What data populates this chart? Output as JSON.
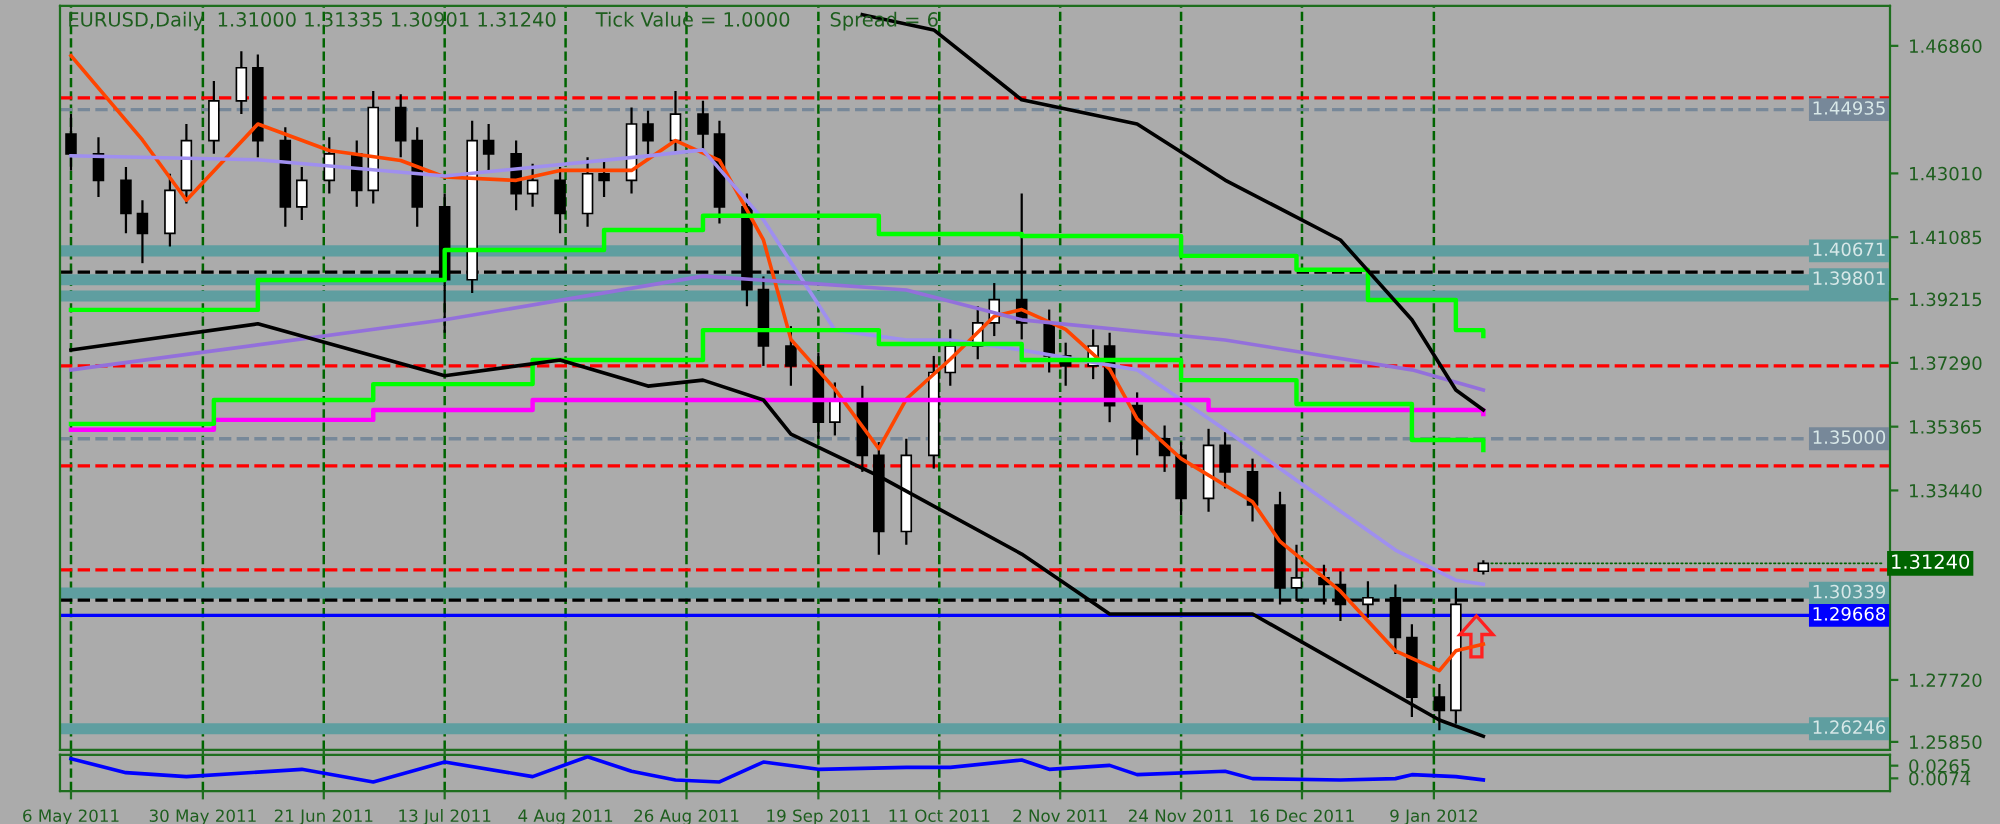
{
  "chart_data": [
    {
      "type": "candlestick",
      "x": [
        "2011-05-06",
        "2011-05-11",
        "2011-05-16",
        "2011-05-19",
        "2011-05-24",
        "2011-05-27",
        "2011-06-01",
        "2011-06-06",
        "2011-06-09",
        "2011-06-14",
        "2011-06-17",
        "2011-06-22",
        "2011-06-27",
        "2011-06-30",
        "2011-07-05",
        "2011-07-08",
        "2011-07-13",
        "2011-07-18",
        "2011-07-21",
        "2011-07-26",
        "2011-07-29",
        "2011-08-03",
        "2011-08-08",
        "2011-08-11",
        "2011-08-16",
        "2011-08-19",
        "2011-08-24",
        "2011-08-29",
        "2011-09-01",
        "2011-09-06",
        "2011-09-09",
        "2011-09-14",
        "2011-09-19",
        "2011-09-22",
        "2011-09-27",
        "2011-09-30",
        "2011-10-05",
        "2011-10-10",
        "2011-10-13",
        "2011-10-18",
        "2011-10-21",
        "2011-10-26",
        "2011-10-31",
        "2011-11-03",
        "2011-11-08",
        "2011-11-11",
        "2011-11-16",
        "2011-11-21",
        "2011-11-24",
        "2011-11-29",
        "2011-12-02",
        "2011-12-07",
        "2011-12-12",
        "2011-12-15",
        "2011-12-20",
        "2011-12-23",
        "2011-12-28",
        "2012-01-02",
        "2012-01-05",
        "2012-01-10",
        "2012-01-13",
        "2012-01-18"
      ],
      "ohlc": [
        [
          1.442,
          1.448,
          1.431,
          1.436
        ],
        [
          1.436,
          1.441,
          1.423,
          1.428
        ],
        [
          1.428,
          1.432,
          1.412,
          1.418
        ],
        [
          1.418,
          1.422,
          1.403,
          1.412
        ],
        [
          1.412,
          1.43,
          1.408,
          1.425
        ],
        [
          1.425,
          1.445,
          1.421,
          1.44
        ],
        [
          1.44,
          1.458,
          1.436,
          1.452
        ],
        [
          1.452,
          1.467,
          1.448,
          1.462
        ],
        [
          1.462,
          1.466,
          1.435,
          1.44
        ],
        [
          1.44,
          1.444,
          1.414,
          1.42
        ],
        [
          1.42,
          1.432,
          1.416,
          1.428
        ],
        [
          1.428,
          1.441,
          1.424,
          1.436
        ],
        [
          1.436,
          1.44,
          1.42,
          1.425
        ],
        [
          1.425,
          1.455,
          1.421,
          1.45
        ],
        [
          1.45,
          1.454,
          1.435,
          1.44
        ],
        [
          1.44,
          1.444,
          1.414,
          1.42
        ],
        [
          1.42,
          1.424,
          1.382,
          1.398
        ],
        [
          1.398,
          1.446,
          1.394,
          1.44
        ],
        [
          1.44,
          1.445,
          1.431,
          1.436
        ],
        [
          1.436,
          1.44,
          1.419,
          1.424
        ],
        [
          1.424,
          1.433,
          1.42,
          1.428
        ],
        [
          1.428,
          1.432,
          1.412,
          1.418
        ],
        [
          1.418,
          1.435,
          1.414,
          1.43
        ],
        [
          1.43,
          1.434,
          1.423,
          1.428
        ],
        [
          1.428,
          1.45,
          1.424,
          1.445
        ],
        [
          1.445,
          1.449,
          1.435,
          1.44
        ],
        [
          1.44,
          1.455,
          1.436,
          1.448
        ],
        [
          1.448,
          1.452,
          1.437,
          1.442
        ],
        [
          1.442,
          1.446,
          1.415,
          1.42
        ],
        [
          1.42,
          1.424,
          1.39,
          1.395
        ],
        [
          1.395,
          1.399,
          1.372,
          1.378
        ],
        [
          1.378,
          1.384,
          1.366,
          1.372
        ],
        [
          1.372,
          1.376,
          1.35,
          1.355
        ],
        [
          1.355,
          1.367,
          1.351,
          1.362
        ],
        [
          1.362,
          1.366,
          1.34,
          1.345
        ],
        [
          1.345,
          1.349,
          1.315,
          1.322
        ],
        [
          1.322,
          1.35,
          1.318,
          1.345
        ],
        [
          1.345,
          1.375,
          1.341,
          1.37
        ],
        [
          1.37,
          1.383,
          1.366,
          1.378
        ],
        [
          1.378,
          1.39,
          1.374,
          1.385
        ],
        [
          1.385,
          1.397,
          1.381,
          1.392
        ],
        [
          1.392,
          1.424,
          1.38,
          1.385
        ],
        [
          1.385,
          1.389,
          1.37,
          1.375
        ],
        [
          1.375,
          1.379,
          1.366,
          1.372
        ],
        [
          1.372,
          1.383,
          1.368,
          1.378
        ],
        [
          1.378,
          1.382,
          1.355,
          1.36
        ],
        [
          1.36,
          1.364,
          1.345,
          1.35
        ],
        [
          1.35,
          1.354,
          1.34,
          1.345
        ],
        [
          1.345,
          1.349,
          1.327,
          1.332
        ],
        [
          1.332,
          1.353,
          1.328,
          1.348
        ],
        [
          1.348,
          1.352,
          1.335,
          1.34
        ],
        [
          1.34,
          1.344,
          1.325,
          1.33
        ],
        [
          1.33,
          1.334,
          1.3,
          1.305
        ],
        [
          1.305,
          1.318,
          1.301,
          1.308
        ],
        [
          1.308,
          1.312,
          1.3,
          1.306
        ],
        [
          1.306,
          1.31,
          1.295,
          1.3
        ],
        [
          1.3,
          1.307,
          1.296,
          1.302
        ],
        [
          1.302,
          1.306,
          1.285,
          1.29
        ],
        [
          1.29,
          1.294,
          1.266,
          1.272
        ],
        [
          1.272,
          1.276,
          1.262,
          1.268
        ],
        [
          1.268,
          1.305,
          1.264,
          1.3
        ],
        [
          1.31,
          1.31335,
          1.30901,
          1.3124
        ]
      ],
      "series": [
        {
          "type": "line",
          "color": "#ff4500",
          "x": [
            "2011-05-06",
            "2011-05-19",
            "2011-05-27",
            "2011-06-09",
            "2011-06-22",
            "2011-07-05",
            "2011-07-13",
            "2011-07-26",
            "2011-08-03",
            "2011-08-16",
            "2011-08-24",
            "2011-09-01",
            "2011-09-09",
            "2011-09-14",
            "2011-09-22",
            "2011-09-30",
            "2011-10-05",
            "2011-10-13",
            "2011-10-21",
            "2011-10-26",
            "2011-11-03",
            "2011-11-11",
            "2011-11-16",
            "2011-11-24",
            "2011-12-07",
            "2011-12-12",
            "2011-12-23",
            "2012-01-02",
            "2012-01-10",
            "2012-01-13",
            "2012-01-18"
          ],
          "values": [
            1.4656,
            1.4402,
            1.422,
            1.445,
            1.437,
            1.434,
            1.429,
            1.428,
            1.431,
            1.431,
            1.44,
            1.434,
            1.41,
            1.38,
            1.365,
            1.347,
            1.362,
            1.374,
            1.387,
            1.389,
            1.383,
            1.371,
            1.356,
            1.344,
            1.331,
            1.319,
            1.304,
            1.286,
            1.28,
            1.286,
            1.288
          ]
        },
        {
          "type": "line",
          "color": "#9f8fef",
          "x": [
            "2011-05-06",
            "2011-06-09",
            "2011-07-13",
            "2011-08-19",
            "2011-08-29",
            "2011-09-09",
            "2011-09-22",
            "2011-10-05",
            "2011-10-13",
            "2011-10-26",
            "2011-11-16",
            "2011-12-02",
            "2011-12-15",
            "2012-01-02",
            "2012-01-13",
            "2012-01-18"
          ],
          "values": [
            1.4354,
            1.4342,
            1.4293,
            1.4354,
            1.4372,
            1.4161,
            1.3828,
            1.3798,
            1.3798,
            1.3768,
            1.3708,
            1.3527,
            1.3375,
            1.3164,
            1.3073,
            1.3061
          ]
        },
        {
          "type": "line",
          "color": "#9370db",
          "x": [
            "2011-05-06",
            "2011-07-13",
            "2011-08-29",
            "2011-10-05",
            "2011-10-26",
            "2011-12-02",
            "2012-01-05",
            "2012-01-18"
          ],
          "values": [
            1.3708,
            1.3859,
            1.3991,
            1.3949,
            1.3859,
            1.3798,
            1.3708,
            1.3647
          ]
        },
        {
          "type": "step",
          "color": "#ff00ff",
          "x": [
            "2011-05-06",
            "2011-06-01",
            "2011-06-30",
            "2011-07-29",
            "2011-09-30",
            "2011-11-29",
            "2012-01-18"
          ],
          "values": [
            1.3527,
            1.3557,
            1.3587,
            1.3617,
            1.3617,
            1.3587,
            1.3575
          ]
        },
        {
          "type": "step",
          "color": "#00ff00",
          "x": [
            "2011-05-06",
            "2011-06-09",
            "2011-07-13",
            "2011-08-11",
            "2011-08-29",
            "2011-09-30",
            "2011-10-26",
            "2011-11-24",
            "2011-12-15",
            "2011-12-28",
            "2012-01-13",
            "2012-01-18"
          ],
          "values": [
            1.3889,
            1.3979,
            1.407,
            1.413,
            1.4173,
            1.4118,
            1.4112,
            1.4052,
            1.401,
            1.3919,
            1.3828,
            1.381
          ]
        },
        {
          "type": "step",
          "color": "#00ff00",
          "x": [
            "2011-05-06",
            "2011-06-01",
            "2011-06-30",
            "2011-07-29",
            "2011-08-29",
            "2011-09-30",
            "2011-10-26",
            "2011-11-24",
            "2011-12-15",
            "2012-01-05",
            "2012-01-18"
          ],
          "values": [
            1.3545,
            1.3617,
            1.3665,
            1.3738,
            1.3828,
            1.3786,
            1.3738,
            1.3677,
            1.3605,
            1.3496,
            1.3466
          ]
        },
        {
          "type": "line",
          "color": "#000000",
          "x": [
            "2011-05-06",
            "2011-06-09",
            "2011-07-13",
            "2011-08-03",
            "2011-08-19",
            "2011-08-29",
            "2011-09-09",
            "2011-09-14",
            "2011-09-30",
            "2011-10-26",
            "2011-11-11",
            "2011-12-07",
            "2012-01-10",
            "2012-01-18"
          ],
          "values": [
            1.3768,
            1.3847,
            1.369,
            1.3738,
            1.3659,
            1.3677,
            1.3617,
            1.3514,
            1.3387,
            1.3152,
            1.2971,
            1.2971,
            1.2651,
            1.2602
          ]
        },
        {
          "type": "line",
          "color": "#000000",
          "x": [
            "2011-09-27",
            "2011-10-10",
            "2011-10-26",
            "2011-11-16",
            "2011-12-02",
            "2011-12-23",
            "2012-01-05",
            "2012-01-13",
            "2012-01-18"
          ],
          "values": [
            1.478,
            1.4734,
            1.4523,
            1.445,
            1.4281,
            1.41,
            1.3859,
            1.3647,
            1.3587
          ]
        }
      ],
      "ylim": [
        1.2561,
        1.4807
      ],
      "yticks": [
        {
          "value": 1.4686,
          "label": "1.46860"
        },
        {
          "value": 1.4301,
          "label": "1.43010"
        },
        1.41085,
        1.39215,
        {
          "value": 1.3729,
          "label": "1.37290"
        },
        1.35365,
        {
          "value": 1.3344,
          "label": "1.33440"
        },
        {
          "value": 1.2772,
          "label": "1.27720"
        },
        {
          "value": 1.2585,
          "label": "1.25850"
        }
      ],
      "xlim": [
        "2011-05-04",
        "2012-04-01"
      ],
      "xticks": [
        {
          "value": "2011-05-06",
          "label": null
        },
        {
          "value": "2011-05-30",
          "label": null
        },
        {
          "value": "2011-06-21",
          "label": null
        },
        {
          "value": "2011-07-13",
          "label": null
        },
        {
          "value": "2011-08-04",
          "label": null
        },
        {
          "value": "2011-08-26",
          "label": null
        },
        {
          "value": "2011-09-19",
          "label": null
        },
        {
          "value": "2011-10-11",
          "label": null
        },
        {
          "value": "2011-11-02",
          "label": null
        },
        {
          "value": "2011-11-24",
          "label": null
        },
        {
          "value": "2011-12-16",
          "label": null
        },
        {
          "value": "2012-01-09",
          "label": null
        }
      ],
      "tick_labels": "y",
      "grid": "x",
      "ref_lines": [
        {
          "axis": "y",
          "value": 1.4529,
          "color": "#ff0000",
          "line_style": "dashed"
        },
        {
          "axis": "y",
          "value": 1.44935,
          "label": "1.44935",
          "color": "#778899",
          "line_style": "dashed"
        },
        {
          "axis": "y",
          "value": 1.40671,
          "label": "1.40671",
          "color": "#5f9ea0",
          "line_style": "solid"
        },
        {
          "axis": "y",
          "value": 1.4003,
          "color": "#000000",
          "line_style": "dashed"
        },
        {
          "axis": "y",
          "value": 1.39801,
          "label": "1.39801",
          "color": "#5f9ea0",
          "line_style": "solid"
        },
        {
          "axis": "y",
          "value": 1.3931,
          "color": "#5f9ea0",
          "line_style": "solid"
        },
        {
          "axis": "y",
          "value": 1.372,
          "color": "#ff0000",
          "line_style": "dashed"
        },
        {
          "axis": "y",
          "value": 1.35,
          "label": "1.35000",
          "color": "#778899",
          "line_style": "dashed"
        },
        {
          "axis": "y",
          "value": 1.3418,
          "color": "#ff0000",
          "line_style": "dashed"
        },
        {
          "axis": "y",
          "value": 1.3104,
          "color": "#ff0000",
          "line_style": "dashed"
        },
        {
          "axis": "y",
          "value": 1.30339,
          "label": "1.30339",
          "color": "#5f9ea0",
          "line_style": "solid"
        },
        {
          "axis": "y",
          "value": 1.3013,
          "color": "#000000",
          "line_style": "dashed"
        },
        {
          "axis": "y",
          "value": 1.29668,
          "label": "1.29668",
          "color": "#0000ff",
          "line_style": "solid"
        },
        {
          "axis": "y",
          "value": 1.26246,
          "label": "1.26246",
          "color": "#5f9ea0",
          "line_style": "solid"
        }
      ],
      "annotations": [
        "EURUSD,Daily  1.31000 1.31335 1.30901 1.31240",
        "Tick Value = 1.0000",
        "Spread = 6",
        {
          "text": "1.31240",
          "x": "2012-01-18",
          "y": 1.3124
        }
      ]
    },
    {
      "type": "line",
      "series": [
        {
          "color": "#0000ff",
          "x": [
            "2011-05-06",
            "2011-05-16",
            "2011-05-27",
            "2011-06-17",
            "2011-06-30",
            "2011-07-13",
            "2011-07-29",
            "2011-08-08",
            "2011-08-16",
            "2011-08-24",
            "2011-09-01",
            "2011-09-09",
            "2011-09-19",
            "2011-10-05",
            "2011-10-13",
            "2011-10-26",
            "2011-10-31",
            "2011-11-11",
            "2011-11-16",
            "2011-12-02",
            "2011-12-07",
            "2011-12-23",
            "2012-01-02",
            "2012-01-05",
            "2012-01-13",
            "2012-01-18"
          ],
          "values": [
            0.037,
            0.016,
            0.01,
            0.021,
            0.002,
            0.032,
            0.01,
            0.04,
            0.018,
            0.005,
            0.002,
            0.032,
            0.021,
            0.024,
            0.024,
            0.035,
            0.021,
            0.027,
            0.013,
            0.018,
            0.007,
            0.005,
            0.007,
            0.013,
            0.01,
            0.005
          ]
        }
      ],
      "ylim": [
        -0.0117,
        0.0429
      ],
      "yticks": [
        0.0265,
        0.0074
      ],
      "xlim": [
        "2011-05-04",
        "2012-04-01"
      ],
      "xticks": [
        {
          "value": "2011-05-06",
          "label": "6 May 2011"
        },
        {
          "value": "2011-05-30",
          "label": "30 May 2011"
        },
        {
          "value": "2011-06-21",
          "label": "21 Jun 2011"
        },
        {
          "value": "2011-07-13",
          "label": "13 Jul 2011"
        },
        {
          "value": "2011-08-04",
          "label": "4 Aug 2011"
        },
        {
          "value": "2011-08-26",
          "label": "26 Aug 2011"
        },
        {
          "value": "2011-09-19",
          "label": "19 Sep 2011"
        },
        {
          "value": "2011-10-11",
          "label": "11 Oct 2011"
        },
        {
          "value": "2011-11-02",
          "label": "2 Nov 2011"
        },
        {
          "value": "2011-11-24",
          "label": "24 Nov 2011"
        },
        {
          "value": "2011-12-16",
          "label": "16 Dec 2011"
        },
        {
          "value": "2012-01-09",
          "label": "9 Jan 2012"
        }
      ],
      "grid": "x"
    }
  ]
}
